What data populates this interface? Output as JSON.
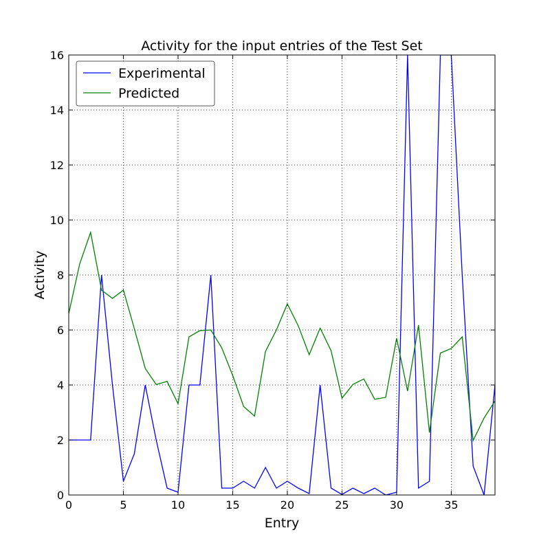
{
  "chart_data": {
    "type": "line",
    "title": "Activity for the input entries of the Test Set",
    "xlabel": "Entry",
    "ylabel": "Activity",
    "xlim": [
      0,
      39
    ],
    "ylim": [
      0,
      16
    ],
    "xticks": [
      0,
      5,
      10,
      15,
      20,
      25,
      30,
      35
    ],
    "yticks": [
      0,
      2,
      4,
      6,
      8,
      10,
      12,
      14,
      16
    ],
    "grid": true,
    "legend_position": "top-left",
    "x": [
      0,
      1,
      2,
      3,
      4,
      5,
      6,
      7,
      8,
      9,
      10,
      11,
      12,
      13,
      14,
      15,
      16,
      17,
      18,
      19,
      20,
      21,
      22,
      23,
      24,
      25,
      26,
      27,
      28,
      29,
      30,
      31,
      32,
      33,
      34,
      35,
      36,
      37,
      38,
      39
    ],
    "series": [
      {
        "name": "Experimental",
        "color": "#0000ff",
        "values": [
          2,
          2,
          2,
          8,
          4,
          0.5,
          1.5,
          4,
          2,
          0.25,
          0.1,
          4,
          4,
          8,
          0.25,
          0.25,
          0.5,
          0.25,
          1,
          0.25,
          0.5,
          0.25,
          0.05,
          4,
          0.25,
          0.02,
          0.25,
          0.05,
          0.25,
          0,
          0.1,
          16,
          0.25,
          0.5,
          16,
          16,
          8,
          1.05,
          0,
          4
        ]
      },
      {
        "name": "Predicted",
        "color": "#008000",
        "values": [
          6.6,
          8.4,
          9.55,
          7.45,
          7.15,
          7.45,
          6.05,
          4.6,
          4.02,
          4.13,
          3.32,
          5.75,
          5.98,
          6.0,
          5.35,
          4.35,
          3.22,
          2.87,
          5.22,
          6.0,
          6.95,
          6.15,
          5.1,
          6.07,
          5.25,
          3.52,
          4.02,
          4.22,
          3.48,
          3.55,
          5.7,
          3.78,
          6.18,
          2.27,
          5.16,
          5.33,
          5.75,
          1.98,
          2.8,
          3.42
        ]
      }
    ]
  }
}
